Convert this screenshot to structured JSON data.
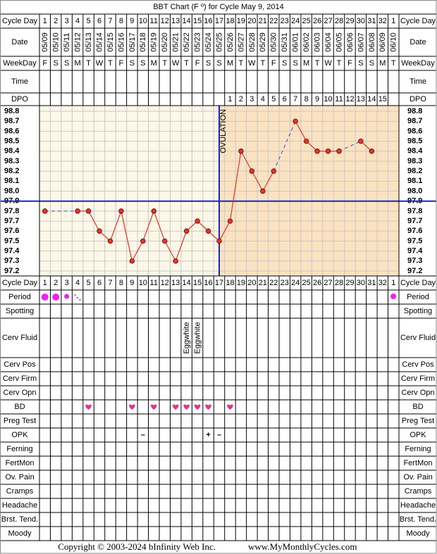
{
  "title": "BBT Chart (F º) for Cycle May 9, 2014",
  "labels": {
    "top": [
      "Cycle Day",
      "Date",
      "WeekDay",
      "Time",
      "DPO"
    ],
    "bottom": [
      "Cycle Day",
      "Period",
      "Spotting",
      "Cerv Fluid",
      "Cerv Pos",
      "Cerv Firm",
      "Cerv Opn",
      "BD",
      "Preg Test",
      "OPK",
      "Ferning",
      "FertMon",
      "Ov. Pain",
      "Cramps",
      "Headache",
      "Brst. Tend.",
      "Moody"
    ]
  },
  "dates": [
    "05/09",
    "05/10",
    "05/11",
    "05/12",
    "05/13",
    "05/14",
    "05/15",
    "05/16",
    "05/17",
    "05/18",
    "05/19",
    "05/20",
    "05/21",
    "05/22",
    "05/23",
    "05/24",
    "05/25",
    "05/26",
    "05/27",
    "05/28",
    "05/29",
    "05/30",
    "05/31",
    "06/01",
    "06/02",
    "06/03",
    "06/04",
    "06/05",
    "06/06",
    "06/07",
    "06/08",
    "06/09",
    "06/10"
  ],
  "weekdays": [
    "F",
    "S",
    "S",
    "M",
    "T",
    "W",
    "T",
    "F",
    "S",
    "S",
    "M",
    "T",
    "W",
    "T",
    "F",
    "S",
    "S",
    "M",
    "T",
    "W",
    "T",
    "F",
    "S",
    "S",
    "M",
    "T",
    "W",
    "T",
    "F",
    "S",
    "S",
    "M",
    "T"
  ],
  "dpo": [
    null,
    null,
    null,
    null,
    null,
    null,
    null,
    null,
    null,
    null,
    null,
    null,
    null,
    null,
    null,
    null,
    null,
    1,
    2,
    3,
    4,
    5,
    6,
    7,
    8,
    9,
    10,
    11,
    12,
    13,
    14,
    15,
    null
  ],
  "cerv_fluid": [
    null,
    null,
    null,
    null,
    null,
    null,
    null,
    null,
    null,
    null,
    null,
    null,
    null,
    "Eggwhite",
    "Eggwhite",
    null,
    null,
    null,
    null,
    null,
    null,
    null,
    null,
    null,
    null,
    null,
    null,
    null,
    null,
    null,
    null,
    null,
    null
  ],
  "opk": [
    null,
    null,
    null,
    null,
    null,
    null,
    null,
    null,
    null,
    "–",
    null,
    null,
    null,
    null,
    null,
    "+",
    "–",
    null,
    null,
    null,
    null,
    null,
    null,
    null,
    null,
    null,
    null,
    null,
    null,
    null,
    null,
    null,
    null
  ],
  "chart_data": {
    "type": "line",
    "categories": [
      1,
      2,
      3,
      4,
      5,
      6,
      7,
      8,
      9,
      10,
      11,
      12,
      13,
      14,
      15,
      16,
      17,
      18,
      19,
      20,
      21,
      22,
      23,
      24,
      25,
      26,
      27,
      28,
      29,
      30,
      31,
      32,
      1
    ],
    "values": [
      97.8,
      null,
      null,
      97.8,
      97.8,
      97.6,
      97.5,
      97.8,
      97.3,
      97.5,
      97.8,
      97.5,
      97.3,
      97.6,
      97.7,
      97.6,
      97.5,
      97.7,
      98.4,
      98.2,
      98.0,
      98.2,
      null,
      98.7,
      98.5,
      98.4,
      98.4,
      98.4,
      null,
      98.5,
      98.4,
      null,
      null
    ],
    "color": "#e0362c",
    "ylim": [
      97.2,
      98.8
    ],
    "yticks": [
      98.8,
      98.7,
      98.6,
      98.5,
      98.4,
      98.3,
      98.2,
      98.1,
      {
        "value": 98,
        "label": "98.0"
      },
      97.9,
      97.8,
      97.7,
      97.6,
      97.5,
      97.4,
      97.3,
      97.2
    ],
    "coverline": 97.9,
    "coverline_color": "#1428c8",
    "ovulation": {
      "text": "OVULATION",
      "day": 17
    }
  },
  "footer": [
    "Copyright © 2003-2024 bInfinity Web Inc.",
    "www.MyMonthlyCycles.com"
  ]
}
